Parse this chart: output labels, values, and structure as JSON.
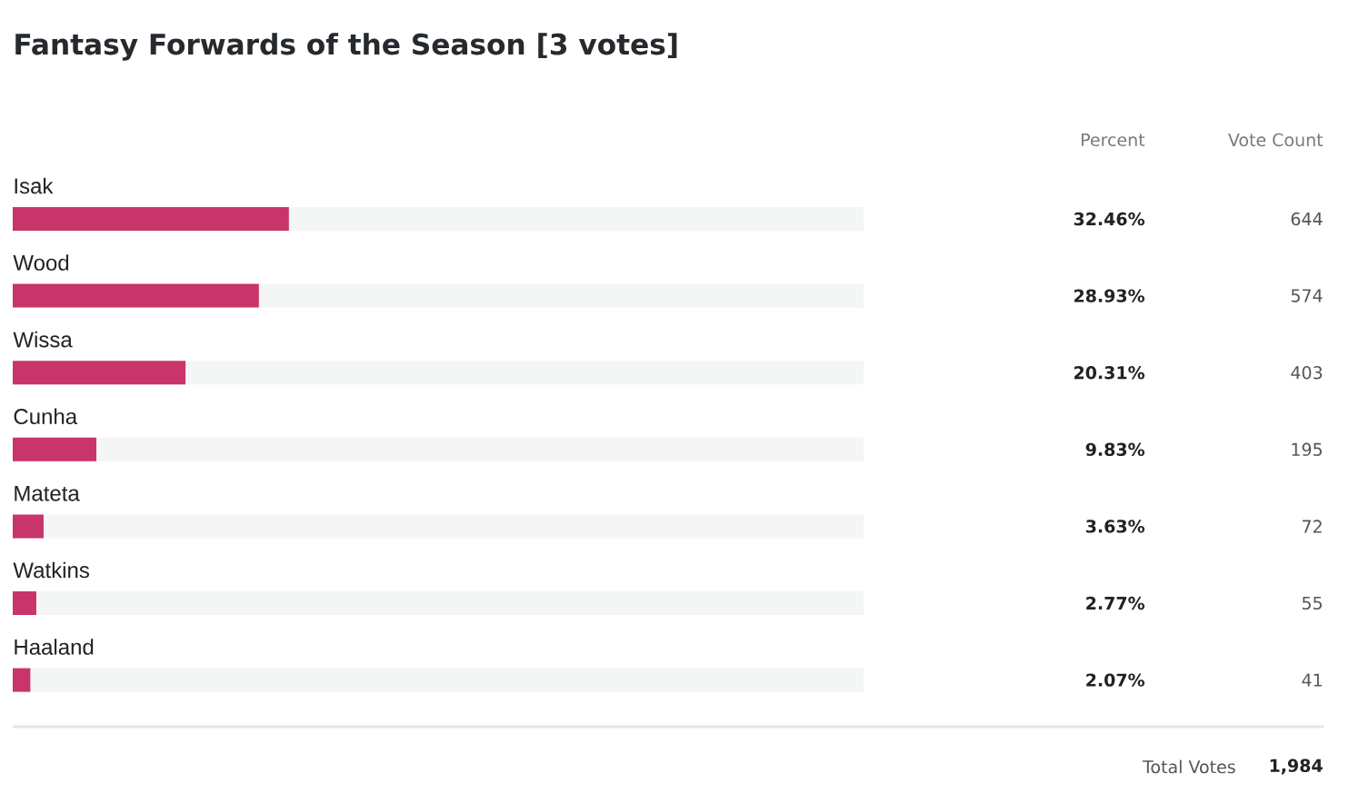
{
  "chart_data": {
    "type": "bar",
    "orientation": "horizontal",
    "title": "Fantasy Forwards of the Season [3 votes]",
    "categories": [
      "Isak",
      "Wood",
      "Wissa",
      "Cunha",
      "Mateta",
      "Watkins",
      "Haaland"
    ],
    "values": [
      32.46,
      28.93,
      20.31,
      9.83,
      3.63,
      2.77,
      2.07
    ],
    "value_labels": [
      "32.46%",
      "28.93%",
      "20.31%",
      "9.83%",
      "3.63%",
      "2.77%",
      "2.07%"
    ],
    "color": "#c8356a",
    "xlim": [
      0,
      100
    ],
    "tick_labels": "y",
    "annotations": [
      "Percent",
      "Vote Count",
      "644",
      "574",
      "403",
      "195",
      "72",
      "55",
      "41",
      "Total Votes",
      "1,984"
    ]
  }
}
